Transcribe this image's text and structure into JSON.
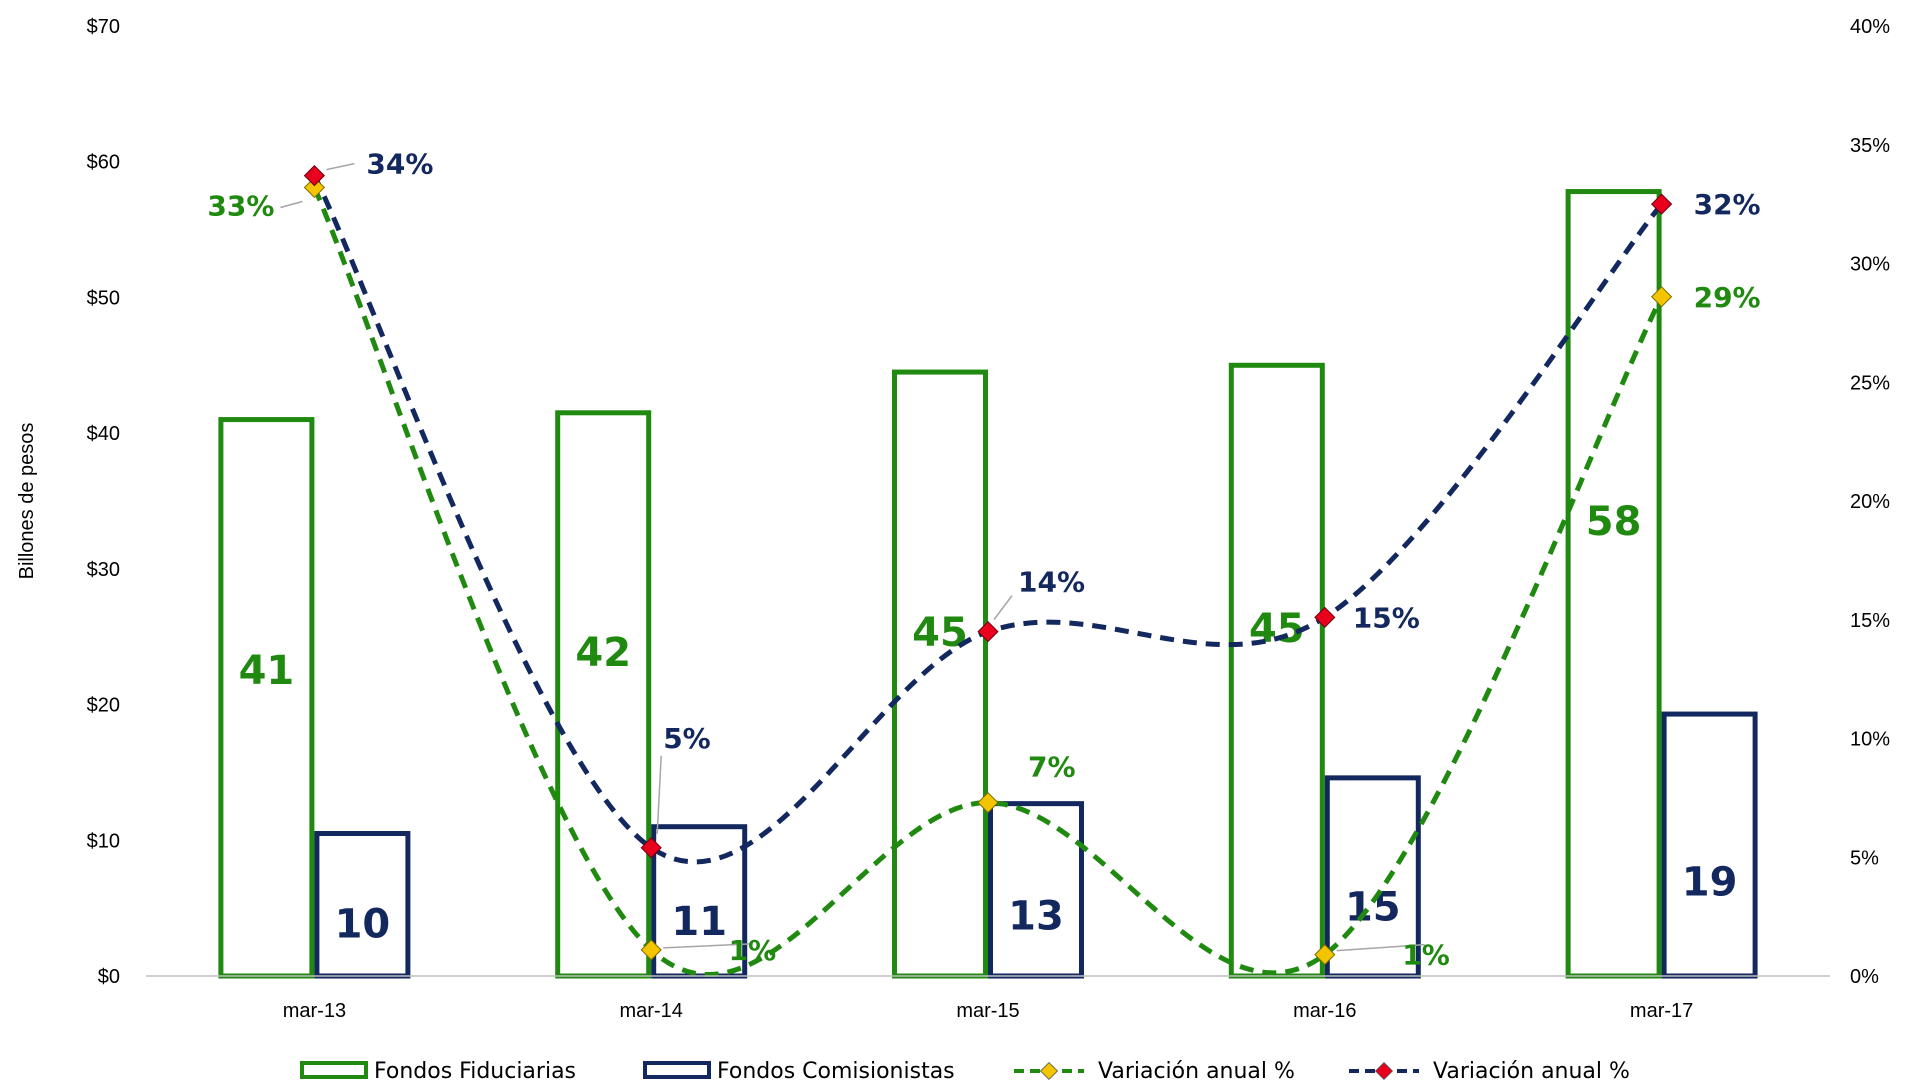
{
  "chart_data": {
    "type": "bar",
    "categories": [
      "mar-13",
      "mar-14",
      "mar-15",
      "mar-16",
      "mar-17"
    ],
    "ylabel": "Billones de pesos",
    "ylim": [
      0,
      70
    ],
    "y_ticks": [
      "$0",
      "$10",
      "$20",
      "$30",
      "$40",
      "$50",
      "$60",
      "$70"
    ],
    "y2lim": [
      0,
      40
    ],
    "y2_ticks": [
      "0%",
      "5%",
      "10%",
      "15%",
      "20%",
      "25%",
      "30%",
      "35%",
      "40%"
    ],
    "grid": false,
    "legend_position": "bottom",
    "colors": {
      "green": "#1f8a0f",
      "navy": "#13285e",
      "diamond_yellow": "#f2c500",
      "diamond_red": "#e8001c"
    },
    "series": [
      {
        "name": "Fondos Fiduciarias",
        "kind": "bar",
        "axis": "left",
        "color": "#1f8a0f",
        "values": [
          41,
          41.5,
          44.5,
          45,
          57.8
        ],
        "labels": [
          "41",
          "42",
          "45",
          "45",
          "58"
        ]
      },
      {
        "name": "Fondos Comisionistas",
        "kind": "bar",
        "axis": "left",
        "color": "#13285e",
        "values": [
          10.5,
          11,
          12.7,
          14.6,
          19.3
        ],
        "labels": [
          "10",
          "11",
          "13",
          "15",
          "19"
        ]
      },
      {
        "name": "Variación anual %",
        "kind": "line",
        "axis": "right",
        "color": "#1f8a0f",
        "marker_color": "#f2c500",
        "values": [
          33.2,
          1.1,
          7.3,
          0.9,
          28.6
        ],
        "labels": [
          "33%",
          "1%",
          "7%",
          "1%",
          "29%"
        ]
      },
      {
        "name": "Variación anual %",
        "kind": "line",
        "axis": "right",
        "color": "#13285e",
        "marker_color": "#e8001c",
        "values": [
          33.7,
          5.4,
          14.5,
          15.1,
          32.5
        ],
        "labels": [
          "34%",
          "5%",
          "14%",
          "15%",
          "32%"
        ]
      }
    ]
  }
}
